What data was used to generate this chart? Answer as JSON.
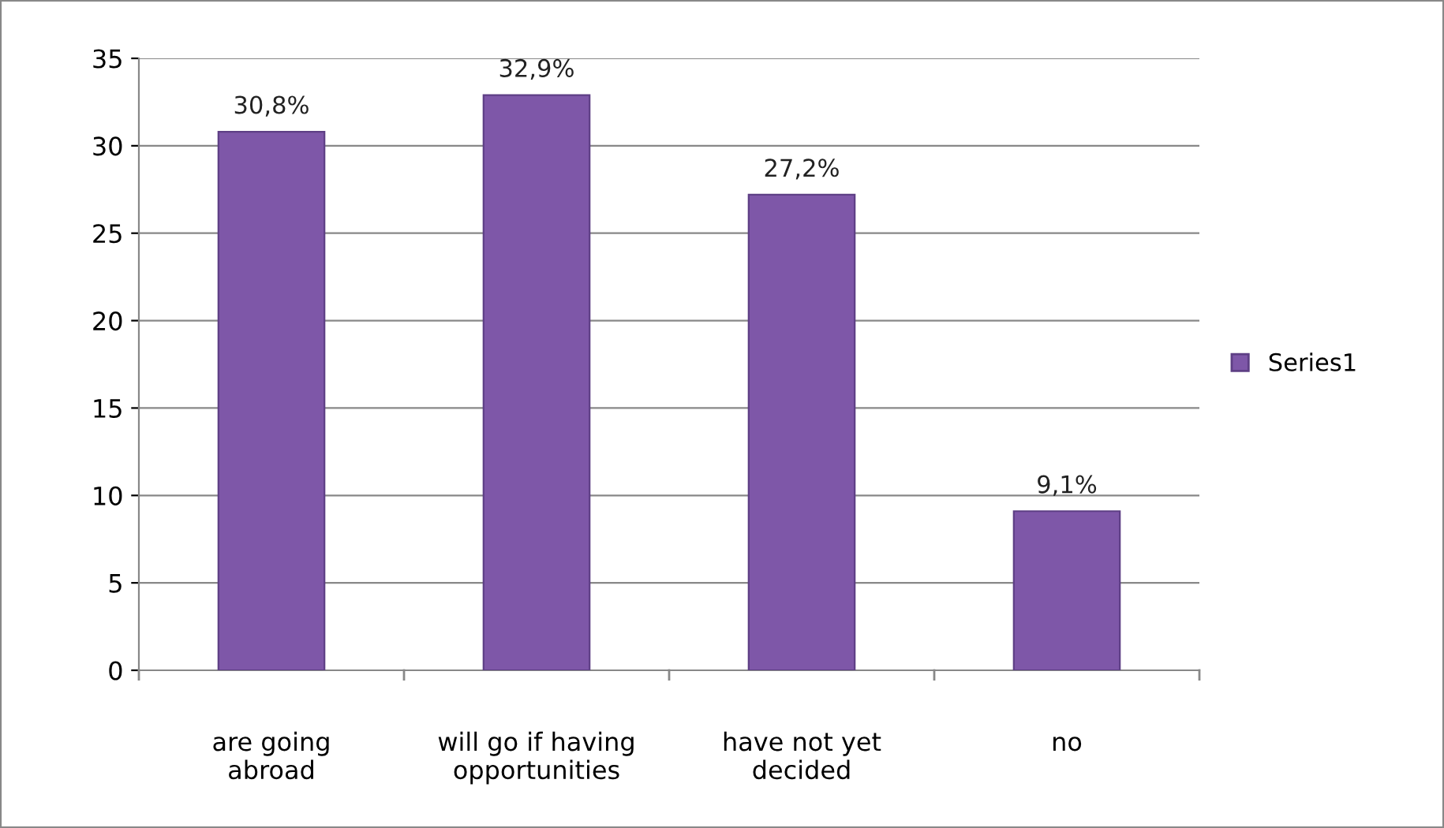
{
  "chart_data": {
    "type": "bar",
    "categories": [
      "are going\nabroad",
      "will go if having\nopportunities",
      "have not yet\ndecided",
      "no"
    ],
    "series": [
      {
        "name": "Series1",
        "color": "#7e57a8",
        "values": [
          30.8,
          32.9,
          27.2,
          9.1
        ],
        "value_labels": [
          "30,8%",
          "32,9%",
          "27,2%",
          "9,1%"
        ]
      }
    ],
    "ylim": [
      0,
      35
    ],
    "yticks": [
      0,
      5,
      10,
      15,
      20,
      25,
      30,
      35
    ],
    "grid": "y",
    "legend": "right"
  }
}
